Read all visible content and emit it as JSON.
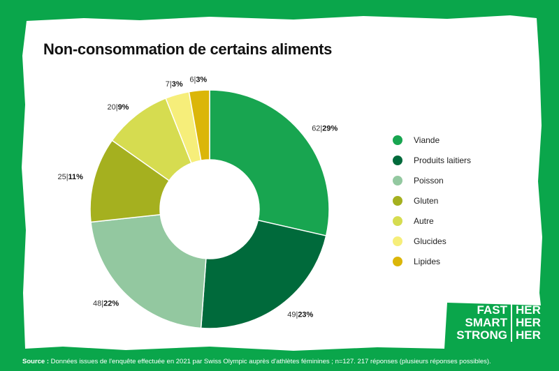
{
  "title": "Non-consommation de certains aliments",
  "source_label": "Source :",
  "source_text": "Données issues de l'enquête effectuée en 2021 par Swiss Olympic auprès d'athlètes féminines ; n=127. 217 réponses (plusieurs réponses possibles).",
  "brand": {
    "left": [
      "FAST",
      "SMART",
      "STRONG"
    ],
    "right": [
      "HER",
      "HER",
      "HER"
    ]
  },
  "colors": {
    "background": "#0aa64b",
    "panel": "#ffffff"
  },
  "chart_data": {
    "type": "pie",
    "variant": "donut",
    "title": "Non-consommation de certains aliments",
    "legend_position": "right",
    "slices": [
      {
        "label": "Viande",
        "count": 62,
        "percent_label": "29%",
        "color": "#18a550"
      },
      {
        "label": "Produits laitiers",
        "count": 49,
        "percent_label": "23%",
        "color": "#006a3b"
      },
      {
        "label": "Poisson",
        "count": 48,
        "percent_label": "22%",
        "color": "#93c8a0"
      },
      {
        "label": "Gluten",
        "count": 25,
        "percent_label": "11%",
        "color": "#a5b01f"
      },
      {
        "label": "Autre",
        "count": 20,
        "percent_label": "9%",
        "color": "#d6dc50"
      },
      {
        "label": "Glucides",
        "count": 7,
        "percent_label": "3%",
        "color": "#f6ee7a"
      },
      {
        "label": "Lipides",
        "count": 6,
        "percent_label": "3%",
        "color": "#dbb609"
      }
    ]
  }
}
